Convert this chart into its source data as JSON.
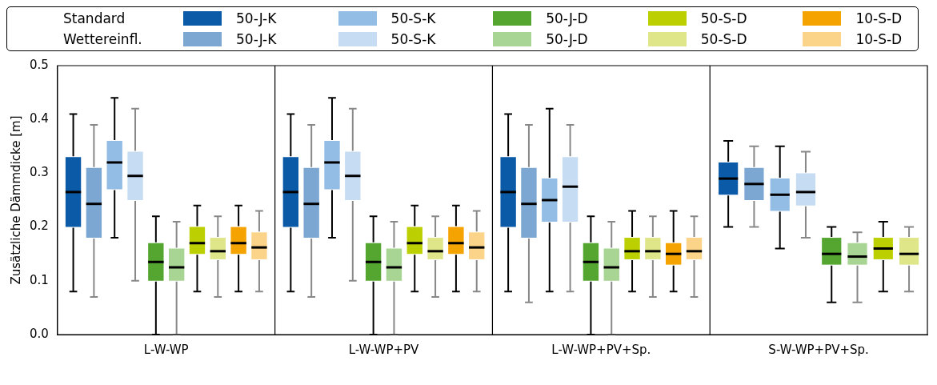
{
  "chart_data": {
    "type": "box",
    "ylabel": "Zusätzliche Dämmdicke [m]",
    "categories": [
      "L-W-WP",
      "L-W-WP+PV",
      "L-W-WP+PV+Sp.",
      "S-W-WP+PV+Sp."
    ],
    "annotations": [
      "Standard",
      "Wettereinfl."
    ],
    "ylim": [
      0,
      0.5
    ],
    "yticks": [
      {
        "value": 0,
        "label": "0.0"
      },
      0.1,
      0.2,
      0.3,
      0.4,
      0.5
    ],
    "grid": false,
    "legend": "top",
    "series": [
      {
        "name": "50-J-K",
        "color": "#0b5aa8",
        "boxes": [
          {
            "low": 0.08,
            "q1": 0.2,
            "median": 0.265,
            "q3": 0.33,
            "high": 0.41
          },
          {
            "low": 0.08,
            "q1": 0.2,
            "median": 0.265,
            "q3": 0.33,
            "high": 0.41
          },
          {
            "low": 0.08,
            "q1": 0.2,
            "median": 0.265,
            "q3": 0.33,
            "high": 0.41
          },
          {
            "low": 0.2,
            "q1": 0.26,
            "median": 0.29,
            "q3": 0.32,
            "high": 0.36
          }
        ]
      },
      {
        "name": "50-J-K",
        "color": "#7ba7d2",
        "boxes": [
          {
            "low": 0.07,
            "q1": 0.18,
            "median": 0.243,
            "q3": 0.31,
            "high": 0.39
          },
          {
            "low": 0.07,
            "q1": 0.18,
            "median": 0.243,
            "q3": 0.31,
            "high": 0.39
          },
          {
            "low": 0.06,
            "q1": 0.18,
            "median": 0.243,
            "q3": 0.31,
            "high": 0.39
          },
          {
            "low": 0.2,
            "q1": 0.25,
            "median": 0.28,
            "q3": 0.31,
            "high": 0.35
          }
        ]
      },
      {
        "name": "50-S-K",
        "color": "#94bde6",
        "boxes": [
          {
            "low": 0.18,
            "q1": 0.27,
            "median": 0.32,
            "q3": 0.36,
            "high": 0.44
          },
          {
            "low": 0.18,
            "q1": 0.27,
            "median": 0.32,
            "q3": 0.36,
            "high": 0.44
          },
          {
            "low": 0.08,
            "q1": 0.21,
            "median": 0.25,
            "q3": 0.29,
            "high": 0.42
          },
          {
            "low": 0.16,
            "q1": 0.23,
            "median": 0.26,
            "q3": 0.29,
            "high": 0.35
          }
        ]
      },
      {
        "name": "50-S-K",
        "color": "#c6dcf2",
        "boxes": [
          {
            "low": 0.1,
            "q1": 0.25,
            "median": 0.295,
            "q3": 0.34,
            "high": 0.42
          },
          {
            "low": 0.1,
            "q1": 0.25,
            "median": 0.295,
            "q3": 0.34,
            "high": 0.42
          },
          {
            "low": 0.08,
            "q1": 0.21,
            "median": 0.275,
            "q3": 0.33,
            "high": 0.39
          },
          {
            "low": 0.18,
            "q1": 0.24,
            "median": 0.265,
            "q3": 0.3,
            "high": 0.34
          }
        ]
      },
      {
        "name": "50-J-D",
        "color": "#55a630",
        "boxes": [
          {
            "low": 0,
            "q1": 0.1,
            "median": 0.135,
            "q3": 0.17,
            "high": 0.22
          },
          {
            "low": 0,
            "q1": 0.1,
            "median": 0.135,
            "q3": 0.17,
            "high": 0.22
          },
          {
            "low": 0,
            "q1": 0.1,
            "median": 0.135,
            "q3": 0.17,
            "high": 0.22
          },
          {
            "low": 0.06,
            "q1": 0.13,
            "median": 0.15,
            "q3": 0.18,
            "high": 0.2
          }
        ]
      },
      {
        "name": "50-J-D",
        "color": "#a8d494",
        "boxes": [
          {
            "low": 0,
            "q1": 0.1,
            "median": 0.125,
            "q3": 0.16,
            "high": 0.21
          },
          {
            "low": 0,
            "q1": 0.1,
            "median": 0.125,
            "q3": 0.16,
            "high": 0.21
          },
          {
            "low": 0,
            "q1": 0.1,
            "median": 0.125,
            "q3": 0.16,
            "high": 0.21
          },
          {
            "low": 0.06,
            "q1": 0.13,
            "median": 0.145,
            "q3": 0.17,
            "high": 0.19
          }
        ]
      },
      {
        "name": "50-S-D",
        "color": "#bccf00",
        "boxes": [
          {
            "low": 0.08,
            "q1": 0.15,
            "median": 0.17,
            "q3": 0.2,
            "high": 0.24
          },
          {
            "low": 0.08,
            "q1": 0.15,
            "median": 0.17,
            "q3": 0.2,
            "high": 0.24
          },
          {
            "low": 0.08,
            "q1": 0.14,
            "median": 0.155,
            "q3": 0.18,
            "high": 0.23
          },
          {
            "low": 0.08,
            "q1": 0.14,
            "median": 0.16,
            "q3": 0.18,
            "high": 0.21
          }
        ]
      },
      {
        "name": "50-S-D",
        "color": "#dfe68a",
        "boxes": [
          {
            "low": 0.07,
            "q1": 0.14,
            "median": 0.155,
            "q3": 0.18,
            "high": 0.22
          },
          {
            "low": 0.07,
            "q1": 0.14,
            "median": 0.155,
            "q3": 0.18,
            "high": 0.22
          },
          {
            "low": 0.07,
            "q1": 0.14,
            "median": 0.155,
            "q3": 0.18,
            "high": 0.22
          },
          {
            "low": 0.08,
            "q1": 0.13,
            "median": 0.15,
            "q3": 0.18,
            "high": 0.2
          }
        ]
      },
      {
        "name": "10-S-D",
        "color": "#f5a300",
        "boxes": [
          {
            "low": 0.08,
            "q1": 0.15,
            "median": 0.17,
            "q3": 0.2,
            "high": 0.24
          },
          {
            "low": 0.08,
            "q1": 0.15,
            "median": 0.17,
            "q3": 0.2,
            "high": 0.24
          },
          {
            "low": 0.08,
            "q1": 0.13,
            "median": 0.15,
            "q3": 0.17,
            "high": 0.23
          },
          null
        ]
      },
      {
        "name": "10-S-D",
        "color": "#fbd48a",
        "boxes": [
          {
            "low": 0.08,
            "q1": 0.14,
            "median": 0.162,
            "q3": 0.19,
            "high": 0.23
          },
          {
            "low": 0.08,
            "q1": 0.14,
            "median": 0.162,
            "q3": 0.19,
            "high": 0.23
          },
          {
            "low": 0.07,
            "q1": 0.14,
            "median": 0.155,
            "q3": 0.18,
            "high": 0.22
          },
          null
        ]
      }
    ]
  }
}
